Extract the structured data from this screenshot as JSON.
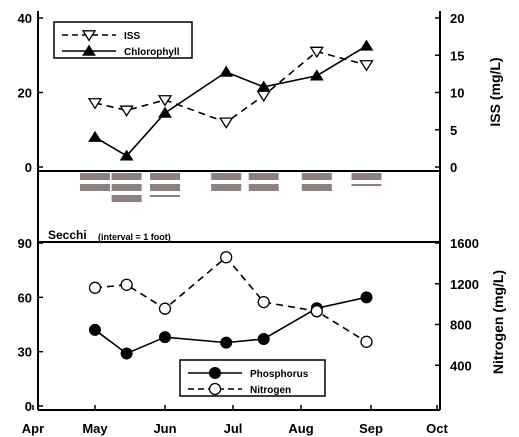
{
  "chart_data": [
    {
      "type": "line",
      "panel": "top",
      "x_categories": [
        "Apr",
        "May",
        "Jun",
        "Jul",
        "Aug",
        "Sep",
        "Oct"
      ],
      "left_axis": {
        "ticks": [
          "40",
          "20",
          "0"
        ],
        "ylim": [
          0,
          40
        ],
        "label": ""
      },
      "right_axis": {
        "ticks": [
          "20",
          "15",
          "10",
          "5",
          "0"
        ],
        "ylim": [
          0,
          20
        ],
        "label": "ISS (mg/L)"
      },
      "legend": {
        "position": "top-left",
        "entries": [
          "ISS",
          "Chlorophyll"
        ]
      },
      "series": [
        {
          "name": "ISS",
          "axis": "right",
          "marker": "open-triangle-down",
          "line": "dashed",
          "x": [
            "May 1",
            "May 15",
            "Jun 1",
            "Jun 28",
            "Jul 15",
            "Aug 8",
            "Aug 30"
          ],
          "y": [
            8.6,
            7.6,
            9.0,
            6.0,
            9.6,
            15.5,
            13.7
          ]
        },
        {
          "name": "Chlorophyll",
          "axis": "left",
          "marker": "filled-triangle-up",
          "line": "solid",
          "x": [
            "May 1",
            "May 15",
            "Jun 1",
            "Jun 28",
            "Jul 15",
            "Aug 8",
            "Aug 30"
          ],
          "y": [
            8.0,
            3.0,
            14.5,
            25.5,
            21.5,
            24.5,
            32.5
          ]
        }
      ]
    },
    {
      "type": "bar",
      "panel": "middle",
      "title": "Secchi",
      "subtitle": "(interval = 1 foot)",
      "x_categories": [
        "Apr",
        "May",
        "Jun",
        "Jul",
        "Aug",
        "Sep",
        "Oct"
      ],
      "dates": [
        "May 1",
        "May 15",
        "Jun 1",
        "Jun 28",
        "Jul 15",
        "Aug 8",
        "Aug 30"
      ],
      "depth_ft": [
        2.0,
        3.0,
        2.5,
        2.0,
        2.0,
        2.0,
        1.5
      ]
    },
    {
      "type": "line",
      "panel": "bottom",
      "x_categories": [
        "Apr",
        "May",
        "Jun",
        "Jul",
        "Aug",
        "Sep",
        "Oct"
      ],
      "left_axis": {
        "ticks": [
          "90",
          "60",
          "30",
          "0"
        ],
        "ylim": [
          0,
          90
        ],
        "label": ""
      },
      "right_axis": {
        "ticks": [
          "1600",
          "1200",
          "800",
          "400"
        ],
        "ylim": [
          0,
          1600
        ],
        "label": "Nitrogen (mg/L)"
      },
      "legend": {
        "position": "bottom-right",
        "entries": [
          "Phosphorus",
          "Nitrogen"
        ]
      },
      "series": [
        {
          "name": "Phosphorus",
          "axis": "left",
          "marker": "filled-circle",
          "line": "solid",
          "x": [
            "May 1",
            "May 15",
            "Jun 1",
            "Jun 28",
            "Jul 15",
            "Aug 8",
            "Aug 30"
          ],
          "y": [
            42,
            29,
            38,
            35,
            37,
            54,
            60
          ]
        },
        {
          "name": "Nitrogen",
          "axis": "right",
          "marker": "open-circle",
          "line": "dashed",
          "x": [
            "May 1",
            "May 15",
            "Jun 1",
            "Jun 28",
            "Jul 15",
            "Aug 8",
            "Aug 30"
          ],
          "y": [
            1160,
            1190,
            955,
            1460,
            1020,
            930,
            630
          ]
        }
      ]
    }
  ],
  "colors": {
    "line": "#000000",
    "secchi_bar": "#8c8080",
    "background": "#ffffff"
  }
}
